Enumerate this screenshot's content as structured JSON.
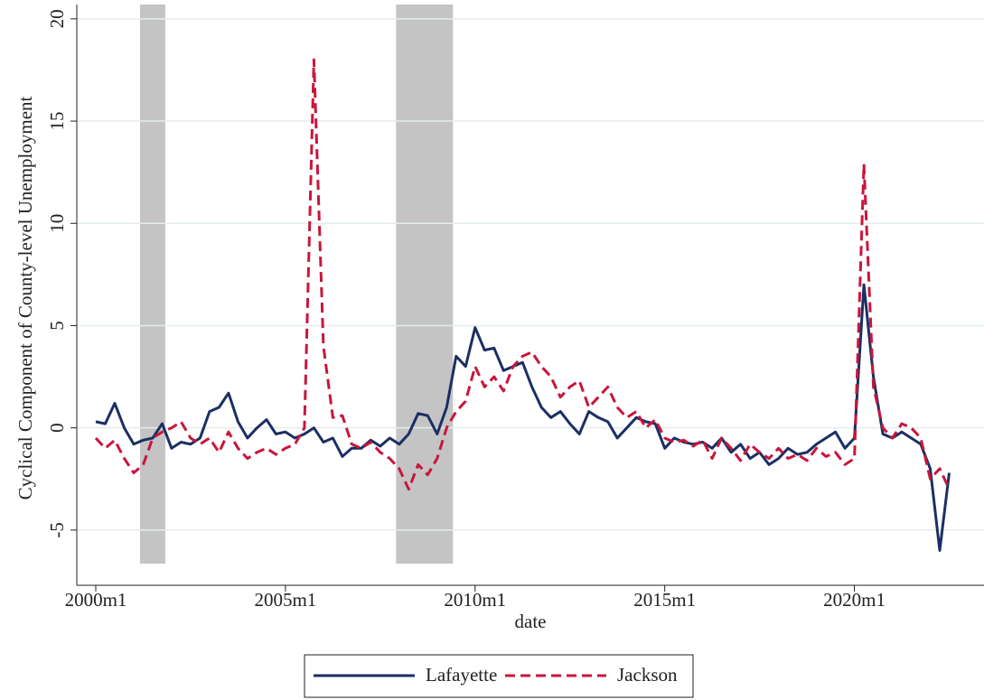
{
  "chart_data": {
    "type": "line",
    "x_label": "date",
    "y_label": "Cyclical Component of County-level Unemployment",
    "x": [
      "2000m1",
      "2000m4",
      "2000m7",
      "2000m10",
      "2001m1",
      "2001m4",
      "2001m7",
      "2001m10",
      "2002m1",
      "2002m4",
      "2002m7",
      "2002m10",
      "2003m1",
      "2003m4",
      "2003m7",
      "2003m10",
      "2004m1",
      "2004m4",
      "2004m7",
      "2004m10",
      "2005m1",
      "2005m4",
      "2005m7",
      "2005m10",
      "2006m1",
      "2006m4",
      "2006m7",
      "2006m10",
      "2007m1",
      "2007m4",
      "2007m7",
      "2007m10",
      "2008m1",
      "2008m4",
      "2008m7",
      "2008m10",
      "2009m1",
      "2009m4",
      "2009m7",
      "2009m10",
      "2010m1",
      "2010m4",
      "2010m7",
      "2010m10",
      "2011m1",
      "2011m4",
      "2011m7",
      "2011m10",
      "2012m1",
      "2012m4",
      "2012m7",
      "2012m10",
      "2013m1",
      "2013m4",
      "2013m7",
      "2013m10",
      "2014m1",
      "2014m4",
      "2014m7",
      "2014m10",
      "2015m1",
      "2015m4",
      "2015m7",
      "2015m10",
      "2016m1",
      "2016m4",
      "2016m7",
      "2016m10",
      "2017m1",
      "2017m4",
      "2017m7",
      "2017m10",
      "2018m1",
      "2018m4",
      "2018m7",
      "2018m10",
      "2019m1",
      "2019m4",
      "2019m7",
      "2019m10",
      "2020m1",
      "2020m4",
      "2020m7",
      "2020m10",
      "2021m1",
      "2021m4",
      "2021m7",
      "2021m10",
      "2022m1",
      "2022m4",
      "2022m7"
    ],
    "series": [
      {
        "name": "Lafayette",
        "color": "#1b2f63",
        "dash": "solid",
        "values": [
          0.3,
          0.2,
          1.2,
          0.0,
          -0.8,
          -0.6,
          -0.5,
          0.2,
          -1.0,
          -0.7,
          -0.8,
          -0.5,
          0.8,
          1.0,
          1.7,
          0.3,
          -0.5,
          0.0,
          0.4,
          -0.3,
          -0.2,
          -0.5,
          -0.3,
          0.0,
          -0.7,
          -0.5,
          -1.4,
          -1.0,
          -1.0,
          -0.6,
          -0.9,
          -0.5,
          -0.8,
          -0.3,
          0.7,
          0.6,
          -0.3,
          1.0,
          3.5,
          3.0,
          4.9,
          3.8,
          3.9,
          2.8,
          3.0,
          3.2,
          2.0,
          1.0,
          0.5,
          0.8,
          0.2,
          -0.3,
          0.8,
          0.5,
          0.3,
          -0.5,
          0.0,
          0.5,
          0.3,
          0.2,
          -1.0,
          -0.5,
          -0.7,
          -0.8,
          -0.7,
          -1.0,
          -0.5,
          -1.2,
          -0.8,
          -1.5,
          -1.2,
          -1.8,
          -1.5,
          -1.0,
          -1.3,
          -1.2,
          -0.8,
          -0.5,
          -0.2,
          -1.0,
          -0.5,
          7.0,
          2.5,
          -0.3,
          -0.5,
          -0.2,
          -0.5,
          -0.8,
          -2.0,
          -6.0,
          -2.2
        ]
      },
      {
        "name": "Jackson",
        "color": "#c8163b",
        "dash": "dashed",
        "values": [
          -0.5,
          -1.0,
          -0.6,
          -1.5,
          -2.2,
          -1.8,
          -0.5,
          -0.2,
          0.0,
          0.3,
          -0.5,
          -0.8,
          -0.5,
          -1.2,
          -0.2,
          -1.0,
          -1.5,
          -1.2,
          -1.0,
          -1.3,
          -1.0,
          -0.8,
          0.0,
          18.0,
          4.0,
          0.5,
          0.6,
          -0.8,
          -1.0,
          -0.7,
          -1.2,
          -1.5,
          -2.0,
          -3.0,
          -1.8,
          -2.3,
          -1.5,
          0.0,
          0.8,
          1.3,
          3.0,
          2.0,
          2.5,
          1.8,
          3.0,
          3.5,
          3.7,
          3.0,
          2.5,
          1.5,
          2.0,
          2.3,
          1.0,
          1.5,
          2.0,
          1.0,
          0.5,
          0.8,
          0.0,
          0.4,
          -0.5,
          -0.7,
          -0.6,
          -0.9,
          -0.6,
          -1.5,
          -0.5,
          -1.0,
          -1.6,
          -0.8,
          -1.2,
          -1.5,
          -1.0,
          -1.5,
          -1.3,
          -1.6,
          -1.0,
          -1.4,
          -1.2,
          -1.8,
          -1.5,
          12.9,
          2.0,
          0.0,
          -0.5,
          0.2,
          0.0,
          -0.5,
          -2.5,
          -2.0,
          -3.0
        ]
      }
    ],
    "shaded_periods": [
      {
        "start": "2001m3",
        "end": "2001m11"
      },
      {
        "start": "2007m12",
        "end": "2009m6"
      }
    ],
    "shade_color": "#c4c4c4",
    "xlim": [
      "1999m7",
      "2023m6"
    ],
    "xticks": [
      "2000m1",
      "2005m1",
      "2010m1",
      "2015m1",
      "2020m1"
    ],
    "ylim": [
      -7.7,
      20.7
    ],
    "yticks": [
      -5,
      0,
      5,
      10,
      15,
      20
    ],
    "grid": true,
    "legend": "bottom"
  }
}
